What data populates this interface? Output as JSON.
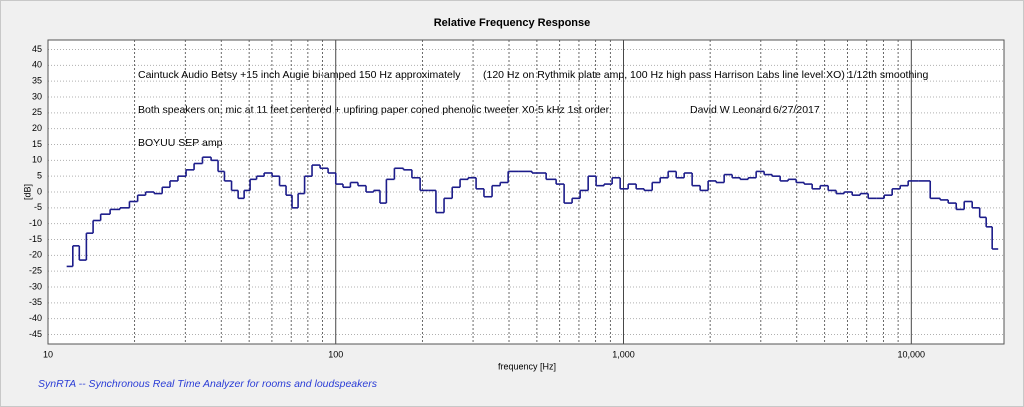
{
  "chart_data": {
    "type": "step-line",
    "title": "Relative Frequency Response",
    "x_label": "frequency [Hz]",
    "y_label": "[dB]",
    "footer": "SynRTA -- Synchronous Real Time Analyzer for rooms and loudspeakers",
    "annotations": [
      "Caintuck Audio Betsy +15 inch Augie bi-amped 150 Hz approximately",
      "(120 Hz on Rythmik plate amp, 100 Hz high pass Harrison Labs line level XO) 1/12th smoothing",
      "Both speakers on, mic at 11 feet centered + upfiring paper coned phenolic tweeter X0-5 kHz 1st order",
      "David W Leonard",
      "6/27/2017",
      "BOYUU  SEP amp"
    ],
    "x_log": true,
    "xlim": [
      10,
      21000
    ],
    "xticks": [
      10,
      100,
      {
        "value": 1000,
        "label": "1,000"
      },
      {
        "value": 10000,
        "label": "10,000"
      }
    ],
    "xminor_ticks": [
      20,
      30,
      40,
      50,
      60,
      70,
      80,
      90,
      200,
      300,
      400,
      500,
      600,
      700,
      800,
      900,
      2000,
      3000,
      4000,
      5000,
      6000,
      7000,
      8000,
      9000
    ],
    "ylim": [
      -48,
      48
    ],
    "yticks": [
      -45,
      -40,
      -35,
      -30,
      -25,
      -20,
      -15,
      -10,
      -5,
      0,
      5,
      10,
      15,
      20,
      25,
      30,
      35,
      40,
      45
    ],
    "grid": true,
    "color": "#1c1c8a",
    "x": [
      11.9,
      12.5,
      13.2,
      14.0,
      14.7,
      15.8,
      17.1,
      18.5,
      19.9,
      21.1,
      22.6,
      24.2,
      25.7,
      27.4,
      29.2,
      31.2,
      33.2,
      35.7,
      38.1,
      39.9,
      42.2,
      44.7,
      46.9,
      49.2,
      51.6,
      54.6,
      58.2,
      62.0,
      65.6,
      68.8,
      72.2,
      75.8,
      80.1,
      85.4,
      91.1,
      97.1,
      103,
      109,
      116,
      123,
      132,
      139,
      146,
      154,
      166,
      178,
      190,
      203,
      216,
      230,
      246,
      262,
      279,
      298,
      317,
      338,
      361,
      385,
      410,
      451,
      513,
      565,
      602,
      642,
      684,
      730,
      778,
      829,
      884,
      943,
      1005,
      1072,
      1142,
      1218,
      1299,
      1384,
      1476,
      1574,
      1677,
      1788,
      1906,
      2032,
      2167,
      2310,
      2463,
      2626,
      2799,
      2984,
      3181,
      3392,
      3616,
      3855,
      4110,
      4382,
      4672,
      4981,
      5309,
      5660,
      6036,
      6435,
      6860,
      7313,
      7797,
      8312,
      8862,
      9448,
      10070,
      11090,
      12210,
      13010,
      13880,
      14790,
      15770,
      16810,
      17780,
      18650,
      19570
    ],
    "values": [
      -23.5,
      -17,
      -21.5,
      -13,
      -9,
      -7,
      -5.5,
      -5,
      -3,
      -1,
      0,
      -0.5,
      1.5,
      3.5,
      5,
      7,
      9,
      11,
      10,
      6.5,
      3.5,
      0.5,
      -2,
      0.5,
      4,
      5,
      6,
      5,
      2,
      -1,
      -5,
      -0.5,
      5,
      8.5,
      7.5,
      6,
      2.5,
      1.5,
      3,
      2,
      0,
      0.5,
      -3.5,
      4,
      7.5,
      7,
      4.5,
      0.5,
      0.5,
      -6.5,
      -2,
      1.5,
      4,
      4.5,
      1,
      -1.5,
      2,
      3,
      6.5,
      6.5,
      6,
      4,
      2.5,
      -3.5,
      -2,
      0.5,
      5,
      2,
      2.5,
      4.5,
      1,
      2.5,
      1,
      0.5,
      3,
      4.5,
      6.5,
      4.5,
      6,
      2,
      0.5,
      3.5,
      3,
      5.5,
      4.5,
      4,
      4.5,
      6.5,
      5.5,
      5,
      3.5,
      4,
      3,
      2.5,
      1,
      2,
      0.5,
      -0.5,
      0,
      -1,
      -0.5,
      -2,
      -2,
      -1,
      1,
      2,
      3.5,
      3.5,
      -2,
      -2.5,
      -3.5,
      -5.5,
      -3,
      -5,
      -8,
      -11,
      -18
    ]
  }
}
